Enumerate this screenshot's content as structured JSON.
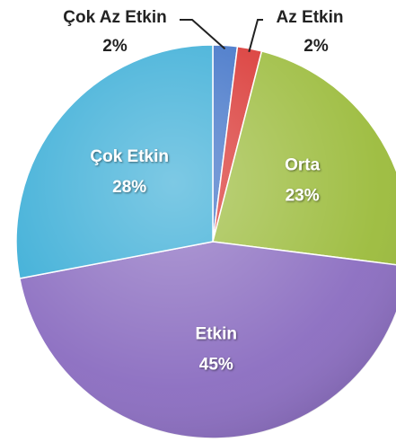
{
  "chart_data": {
    "type": "pie",
    "categories": [
      "Çok Az Etkin",
      "Az Etkin",
      "Orta",
      "Etkin",
      "Çok Etkin"
    ],
    "values": [
      2,
      2,
      23,
      45,
      28
    ],
    "value_labels": [
      "2%",
      "2%",
      "23%",
      "45%",
      "28%"
    ],
    "colors": [
      "#3b6fc6",
      "#d8302d",
      "#9bbb3b",
      "#8a6cc0",
      "#37acd6"
    ]
  }
}
